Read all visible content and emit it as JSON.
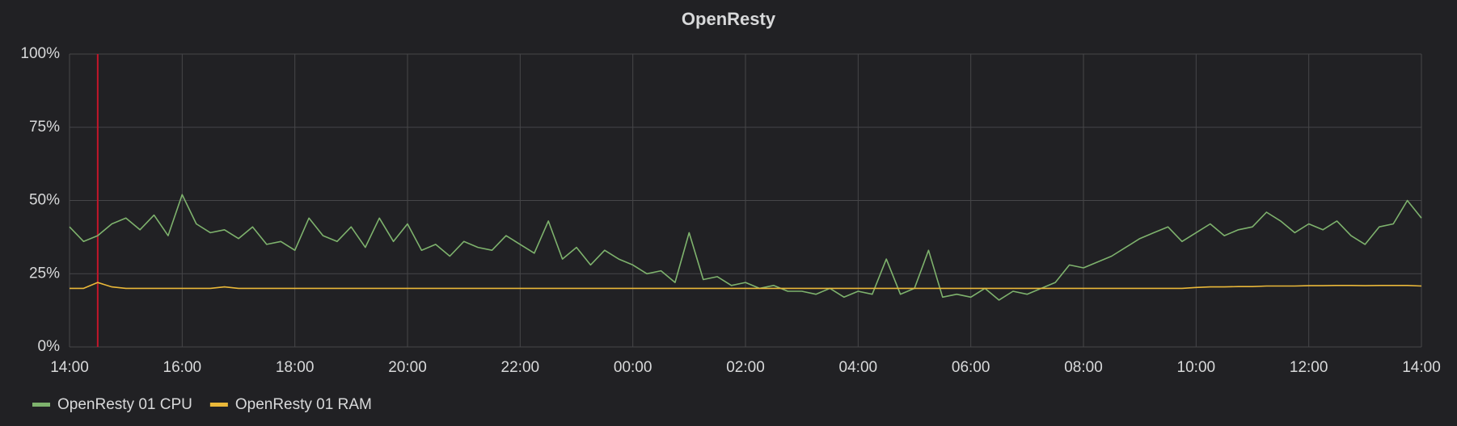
{
  "chart_data": {
    "type": "line",
    "title": "OpenResty",
    "x": [
      14,
      14.25,
      14.5,
      14.75,
      15,
      15.25,
      15.5,
      15.75,
      16,
      16.25,
      16.5,
      16.75,
      17,
      17.25,
      17.5,
      17.75,
      18,
      18.25,
      18.5,
      18.75,
      19,
      19.25,
      19.5,
      19.75,
      20,
      20.25,
      20.5,
      20.75,
      21,
      21.25,
      21.5,
      21.75,
      22,
      22.25,
      22.5,
      22.75,
      23,
      23.25,
      23.5,
      23.75,
      24,
      24.25,
      24.5,
      24.75,
      25,
      25.25,
      25.5,
      25.75,
      26,
      26.25,
      26.5,
      26.75,
      27,
      27.25,
      27.5,
      27.75,
      28,
      28.25,
      28.5,
      28.75,
      29,
      29.25,
      29.5,
      29.75,
      30,
      30.25,
      30.5,
      30.75,
      31,
      31.25,
      31.5,
      31.75,
      32,
      32.25,
      32.5,
      32.75,
      33,
      33.25,
      33.5,
      33.75,
      34,
      34.25,
      34.5,
      34.75,
      35,
      35.25,
      35.5,
      35.75,
      36,
      36.25,
      36.5,
      36.75,
      37,
      37.25,
      37.5,
      37.75,
      38
    ],
    "series": [
      {
        "name": "OpenResty 01 CPU",
        "color": "#7eb26d",
        "values": [
          41,
          36,
          38,
          42,
          44,
          40,
          45,
          38,
          52,
          42,
          39,
          40,
          37,
          41,
          35,
          36,
          33,
          44,
          38,
          36,
          41,
          34,
          44,
          36,
          42,
          33,
          35,
          31,
          36,
          34,
          33,
          38,
          35,
          32,
          43,
          30,
          34,
          28,
          33,
          30,
          28,
          25,
          26,
          22,
          39,
          23,
          24,
          21,
          22,
          20,
          21,
          19,
          19,
          18,
          20,
          17,
          19,
          18,
          30,
          18,
          20,
          33,
          17,
          18,
          17,
          20,
          16,
          19,
          18,
          20,
          22,
          28,
          27,
          29,
          31,
          34,
          37,
          39,
          41,
          36,
          39,
          42,
          38,
          40,
          41,
          46,
          43,
          39,
          42,
          40,
          43,
          38,
          35,
          41,
          42,
          50,
          44
        ]
      },
      {
        "name": "OpenResty 01 RAM",
        "color": "#eab839",
        "values": [
          20,
          20,
          22,
          20.5,
          20,
          20,
          20,
          20,
          20,
          20,
          20,
          20.5,
          20,
          20,
          20,
          20,
          20,
          20,
          20,
          20,
          20,
          20,
          20,
          20,
          20,
          20,
          20,
          20,
          20,
          20,
          20,
          20,
          20,
          20,
          20,
          20,
          20,
          20,
          20,
          20,
          20,
          20,
          20,
          20,
          20,
          20,
          20,
          20,
          20,
          20,
          20,
          20,
          20,
          20,
          20,
          20,
          20,
          20,
          20,
          20,
          20,
          20,
          20,
          20,
          20,
          20,
          20,
          20,
          20,
          20,
          20,
          20,
          20,
          20,
          20,
          20,
          20,
          20,
          20,
          20,
          20.3,
          20.5,
          20.5,
          20.6,
          20.6,
          20.8,
          20.8,
          20.8,
          20.9,
          20.9,
          21,
          21,
          20.9,
          21,
          21,
          21,
          20.8
        ]
      }
    ],
    "annotations": [
      {
        "x": 14.5,
        "color": "#c4162a"
      }
    ],
    "xlim": [
      14,
      38
    ],
    "xticks": [
      {
        "value": 14,
        "label": "14:00"
      },
      {
        "value": 16,
        "label": "16:00"
      },
      {
        "value": 18,
        "label": "18:00"
      },
      {
        "value": 20,
        "label": "20:00"
      },
      {
        "value": 22,
        "label": "22:00"
      },
      {
        "value": 24,
        "label": "00:00"
      },
      {
        "value": 26,
        "label": "02:00"
      },
      {
        "value": 28,
        "label": "04:00"
      },
      {
        "value": 30,
        "label": "06:00"
      },
      {
        "value": 32,
        "label": "08:00"
      },
      {
        "value": 34,
        "label": "10:00"
      },
      {
        "value": 36,
        "label": "12:00"
      },
      {
        "value": 38,
        "label": "14:00"
      }
    ],
    "ylim": [
      0,
      100
    ],
    "yticks": [
      {
        "value": 0,
        "label": "0%"
      },
      {
        "value": 25,
        "label": "25%"
      },
      {
        "value": 50,
        "label": "50%"
      },
      {
        "value": 75,
        "label": "75%"
      },
      {
        "value": 100,
        "label": "100%"
      }
    ],
    "grid": true
  }
}
